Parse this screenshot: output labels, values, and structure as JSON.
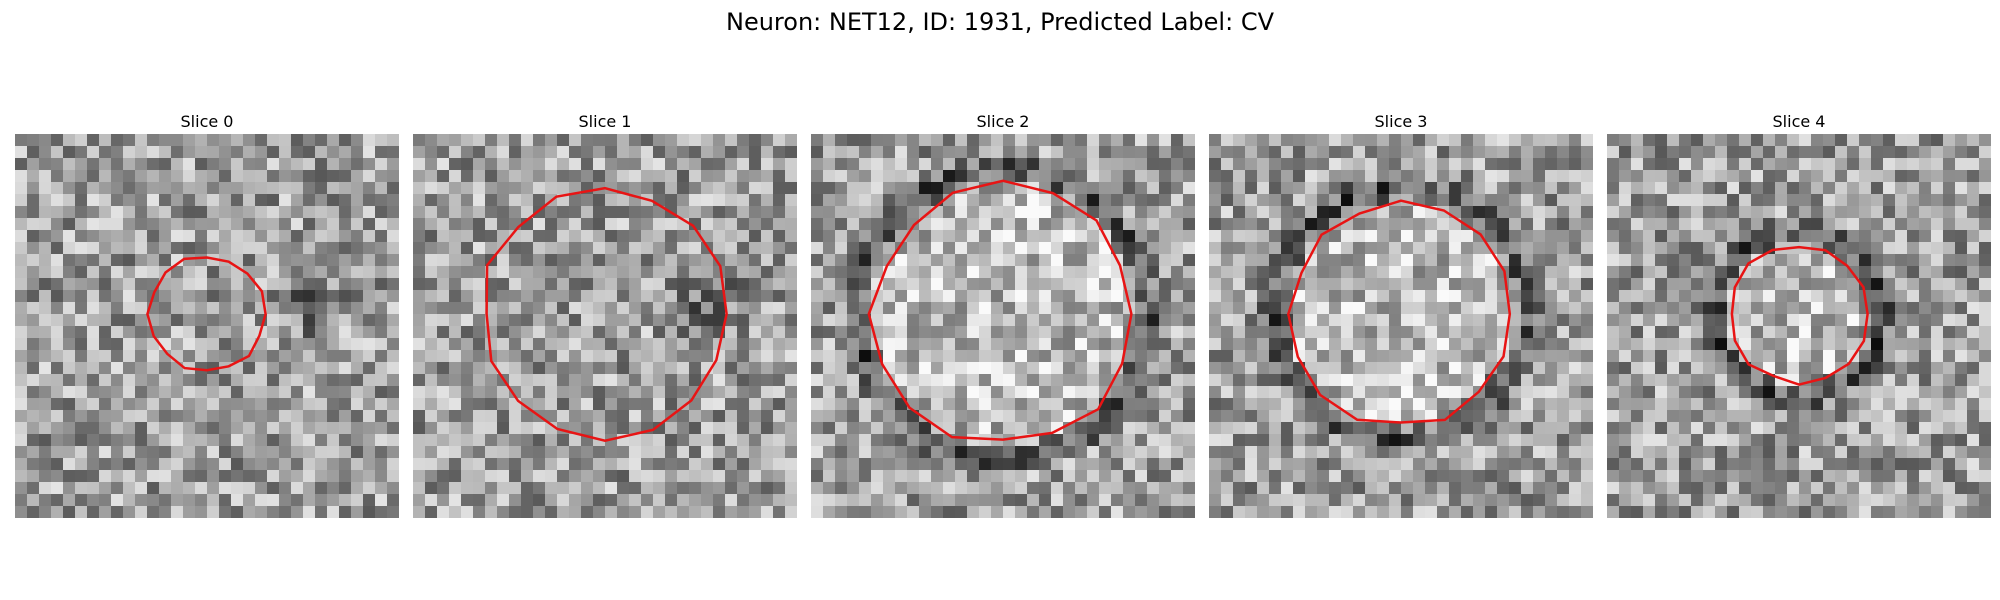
{
  "figure": {
    "title": "Neuron: NET12, ID: 1931, Predicted Label: CV"
  },
  "panels": [
    {
      "title": "Slice 0",
      "contour_radius_fraction": 0.15,
      "dark_ring": false,
      "seed": 11
    },
    {
      "title": "Slice 1",
      "contour_radius_fraction": 0.32,
      "dark_ring": false,
      "seed": 23
    },
    {
      "title": "Slice 2",
      "contour_radius_fraction": 0.34,
      "dark_ring": true,
      "seed": 37
    },
    {
      "title": "Slice 3",
      "contour_radius_fraction": 0.29,
      "dark_ring": true,
      "seed": 51
    },
    {
      "title": "Slice 4",
      "contour_radius_fraction": 0.18,
      "dark_ring": true,
      "seed": 67
    }
  ],
  "colors": {
    "contour": "#e81414"
  }
}
